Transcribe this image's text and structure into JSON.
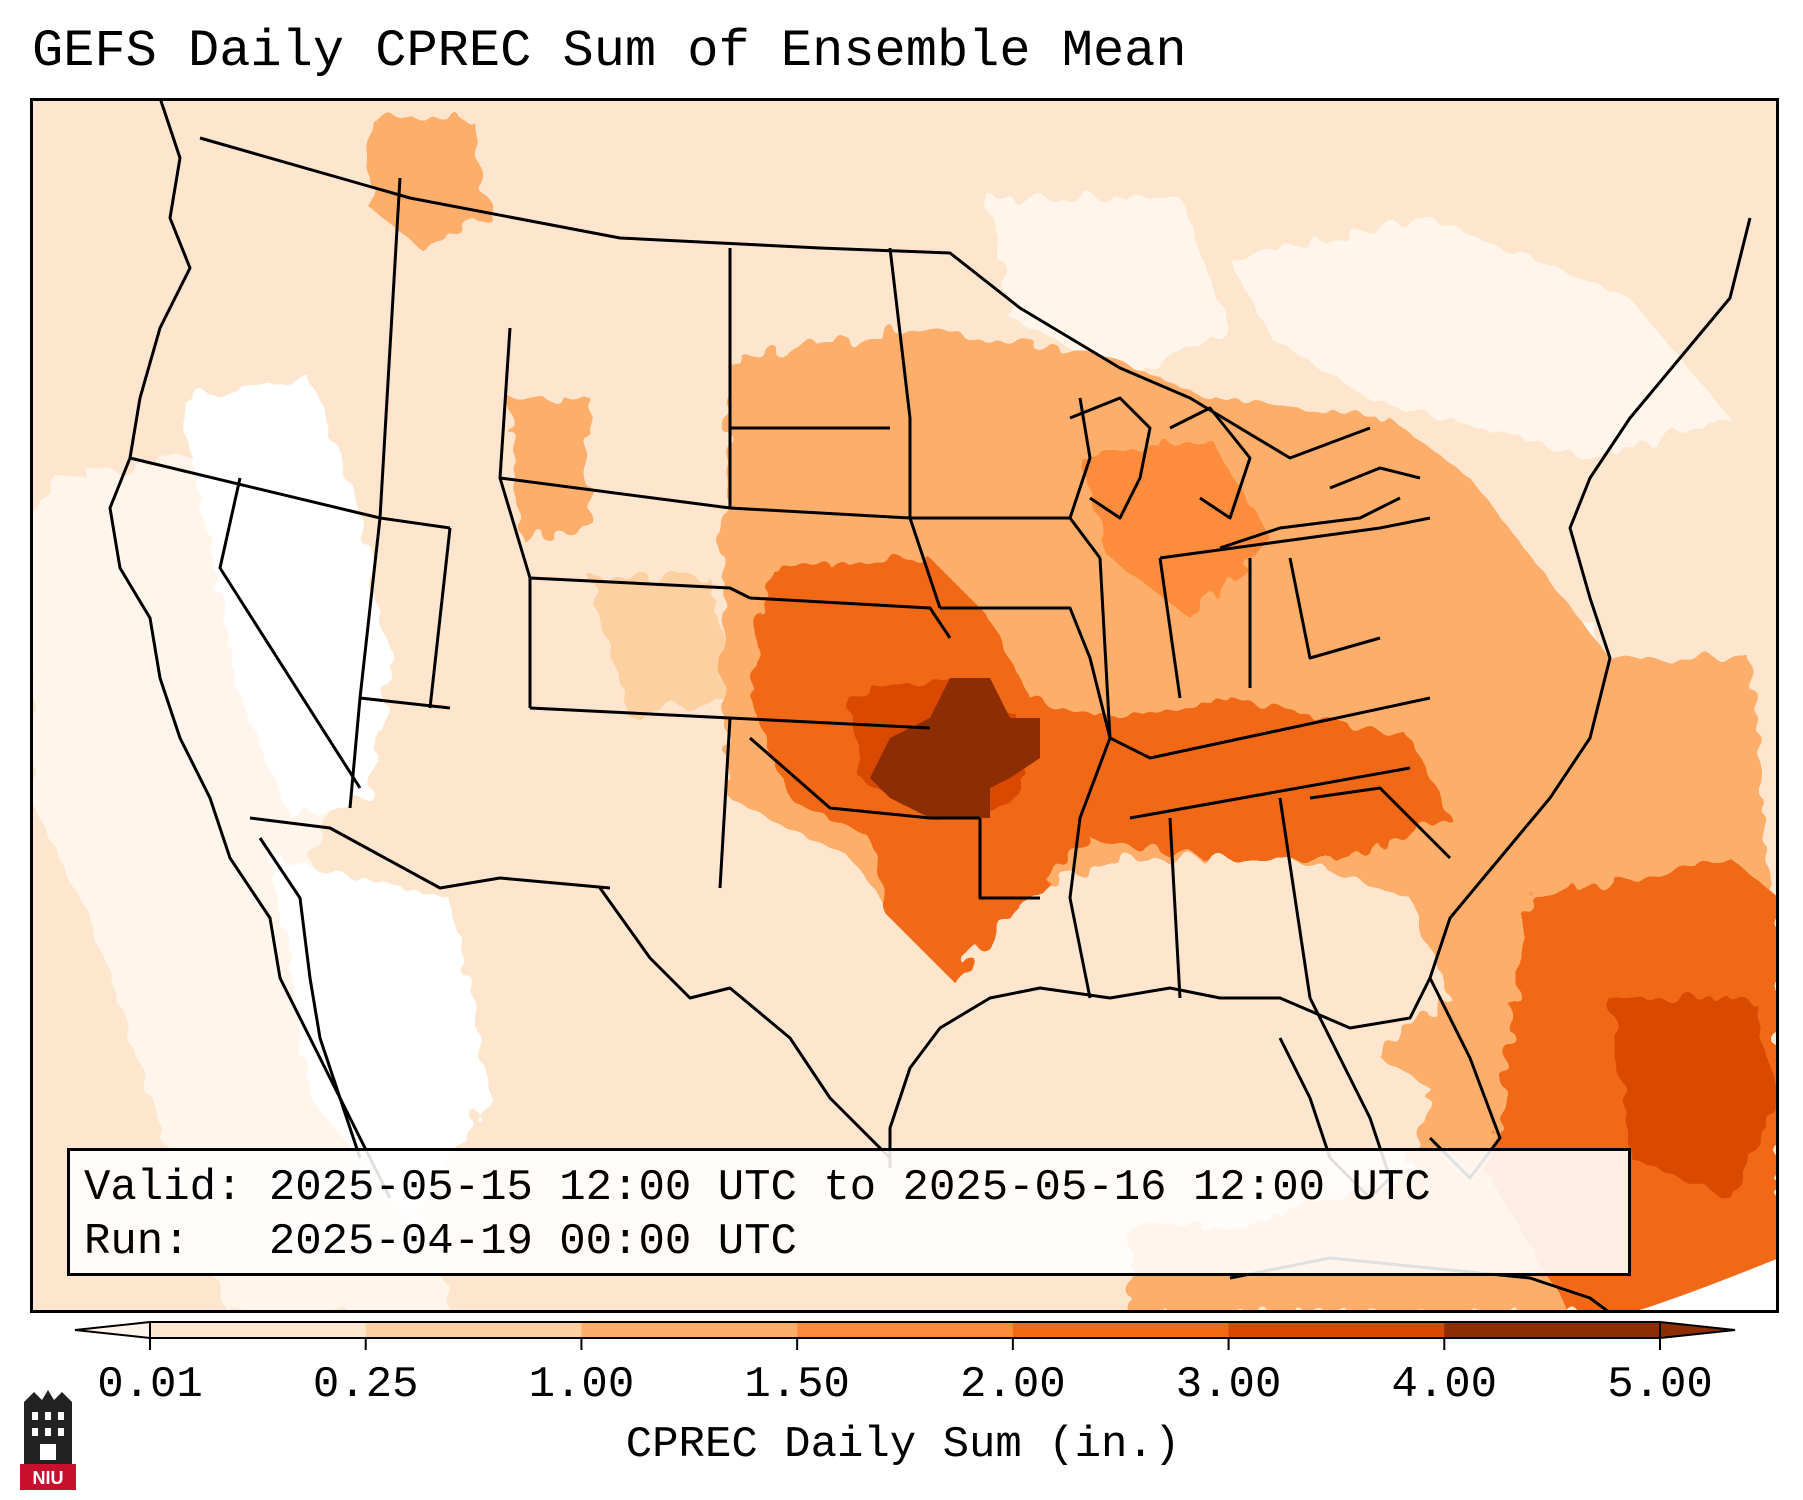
{
  "title": "GEFS Daily CPREC Sum of Ensemble Mean",
  "info": {
    "valid": "Valid: 2025-05-15 12:00 UTC to 2025-05-16 12:00 UTC",
    "run": "Run:   2025-04-19 00:00 UTC"
  },
  "colorbar": {
    "label": "CPREC Daily Sum (in.)",
    "ticks": [
      "0.01",
      "0.25",
      "1.00",
      "1.50",
      "2.00",
      "3.00",
      "4.00",
      "5.00"
    ],
    "colors": [
      "#fff5eb",
      "#fee6ce",
      "#fdd0a2",
      "#fdae6b",
      "#fd8d3c",
      "#f16913",
      "#d94801",
      "#8c2d04"
    ],
    "extend": "both"
  },
  "logo": {
    "text": "NIU"
  }
}
